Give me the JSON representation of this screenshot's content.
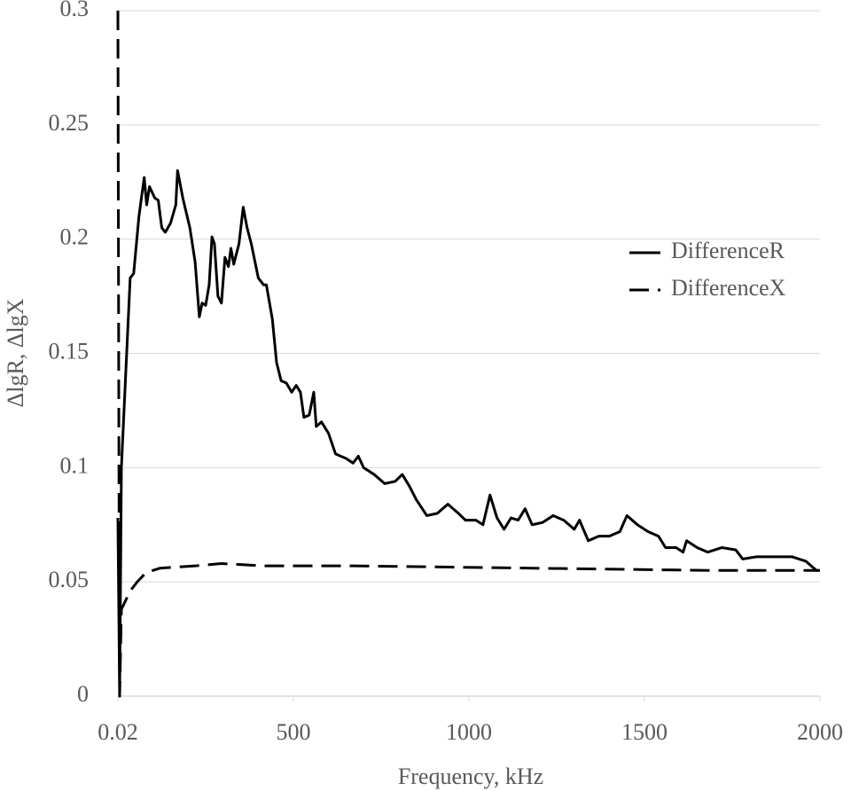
{
  "chart_data": {
    "type": "line",
    "x_label": "Frequency, kHz",
    "y_label": "ΔlgR, ΔlgX",
    "xlim": [
      0.02,
      2000
    ],
    "xticks": [
      0.02,
      500,
      1000,
      1500,
      2000
    ],
    "ylim": [
      0,
      0.3
    ],
    "yticks": [
      0,
      0.05,
      0.1,
      0.15,
      0.2,
      0.25,
      0.3
    ],
    "grid": true,
    "legend": "right",
    "series": [
      {
        "name": "DifferenceR",
        "color": "#000000",
        "dash": "solid",
        "x": [
          0.02,
          5,
          10,
          25,
          35,
          45,
          60,
          75,
          82,
          90,
          105,
          115,
          125,
          135,
          150,
          165,
          170,
          185,
          205,
          220,
          232,
          240,
          250,
          260,
          268,
          275,
          285,
          295,
          305,
          315,
          322,
          330,
          345,
          357,
          368,
          380,
          400,
          415,
          423,
          440,
          452,
          465,
          480,
          495,
          508,
          520,
          530,
          545,
          558,
          565,
          580,
          600,
          620,
          650,
          670,
          685,
          700,
          730,
          760,
          790,
          810,
          830,
          850,
          880,
          910,
          940,
          970,
          990,
          1020,
          1040,
          1060,
          1080,
          1100,
          1120,
          1140,
          1160,
          1180,
          1210,
          1240,
          1270,
          1300,
          1315,
          1340,
          1370,
          1400,
          1430,
          1450,
          1480,
          1510,
          1540,
          1560,
          1590,
          1610,
          1620,
          1650,
          1680,
          1720,
          1760,
          1780,
          1820,
          1880,
          1920,
          1960,
          1990,
          2000
        ],
        "values": [
          0.078,
          0,
          0.1,
          0.15,
          0.183,
          0.185,
          0.21,
          0.227,
          0.215,
          0.223,
          0.218,
          0.217,
          0.205,
          0.203,
          0.207,
          0.215,
          0.23,
          0.218,
          0.205,
          0.19,
          0.166,
          0.172,
          0.171,
          0.18,
          0.201,
          0.198,
          0.175,
          0.172,
          0.192,
          0.188,
          0.196,
          0.189,
          0.198,
          0.214,
          0.205,
          0.198,
          0.183,
          0.18,
          0.18,
          0.165,
          0.146,
          0.138,
          0.137,
          0.133,
          0.136,
          0.133,
          0.122,
          0.123,
          0.133,
          0.118,
          0.12,
          0.115,
          0.106,
          0.104,
          0.102,
          0.105,
          0.1,
          0.097,
          0.093,
          0.094,
          0.097,
          0.092,
          0.086,
          0.079,
          0.08,
          0.084,
          0.08,
          0.077,
          0.077,
          0.075,
          0.088,
          0.078,
          0.073,
          0.078,
          0.077,
          0.082,
          0.075,
          0.076,
          0.079,
          0.077,
          0.073,
          0.077,
          0.068,
          0.07,
          0.07,
          0.072,
          0.079,
          0.075,
          0.072,
          0.07,
          0.065,
          0.065,
          0.063,
          0.068,
          0.065,
          0.063,
          0.065,
          0.064,
          0.06,
          0.061,
          0.061,
          0.061,
          0.059,
          0.055,
          0.055
        ]
      },
      {
        "name": "DifferenceX",
        "color": "#000000",
        "dash": "dashed",
        "x": [
          0.02,
          3,
          5,
          10,
          35,
          55,
          80,
          120,
          220,
          295,
          420,
          675,
          1180,
          1685,
          2000
        ],
        "values": [
          0.3,
          0.1,
          0,
          0.038,
          0.046,
          0.05,
          0.054,
          0.056,
          0.057,
          0.058,
          0.057,
          0.057,
          0.056,
          0.055,
          0.055
        ]
      }
    ]
  }
}
